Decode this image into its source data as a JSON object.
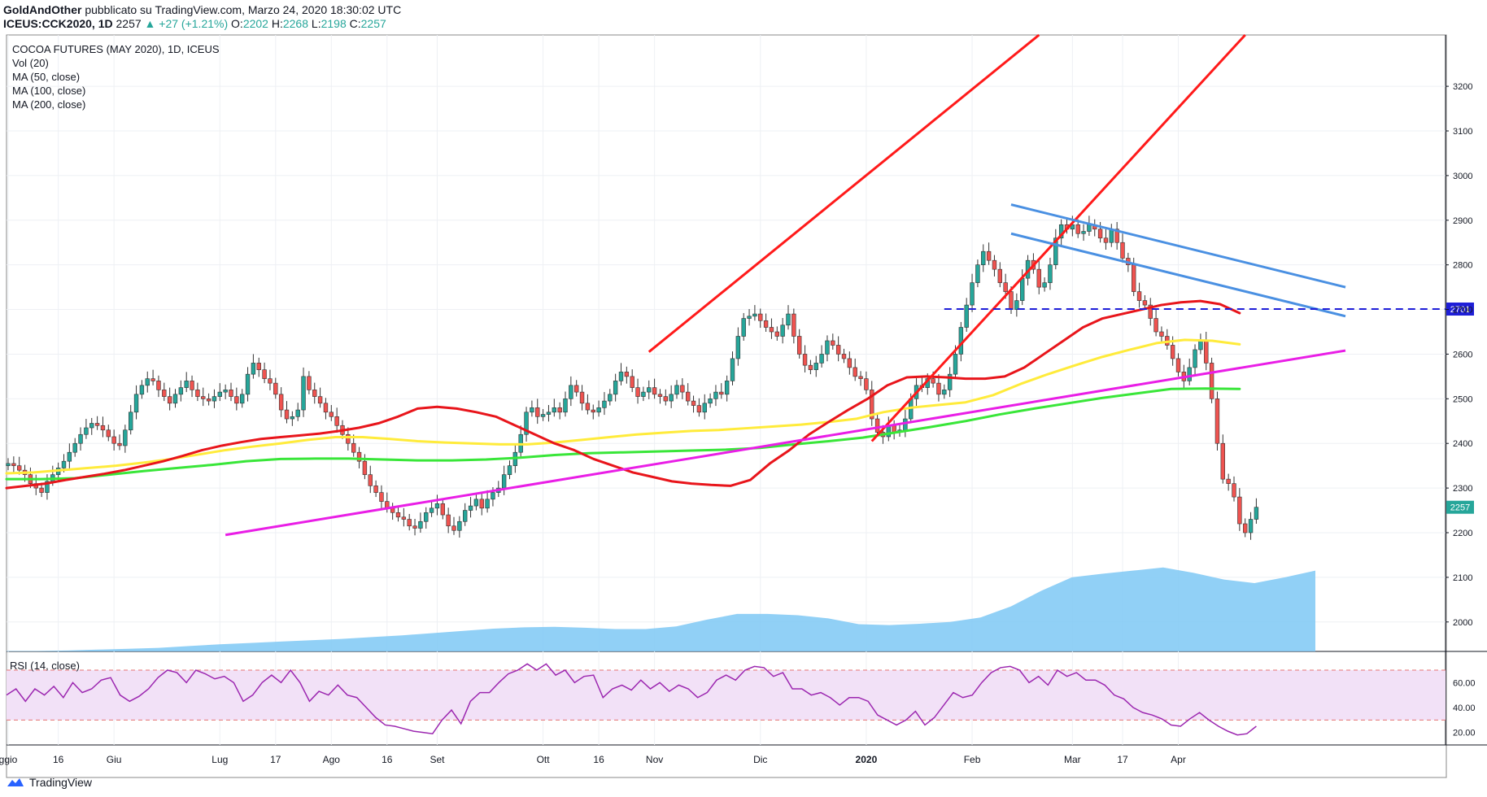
{
  "header": {
    "author": "GoldAndOther",
    "published_text": "pubblicato su TradingView.com, Marzo 24, 2020 18:30:02 UTC",
    "symbol": "ICEUS:CCK2020, 1D",
    "last": "2257",
    "change": "▲ +27 (+1.21%)",
    "o_label": "O:",
    "o": "2202",
    "h_label": "H:",
    "h": "2268",
    "l_label": "L:",
    "l": "2198",
    "c_label": "C:",
    "c": "2257"
  },
  "legend": {
    "title": "COCOA FUTURES (MAY 2020), 1D, ICEUS",
    "items": [
      "Vol (20)",
      "MA (50, close)",
      "MA (100, close)",
      "MA (200, close)"
    ]
  },
  "rsi_label": "RSI (14, close)",
  "footer": {
    "brand": "TradingView"
  },
  "colors": {
    "up": "#26a69a",
    "down": "#ef5350",
    "ma50": "#e8151b",
    "ma100": "#ffeb3b",
    "ma200": "#39e639",
    "trend_red": "#ff1a1a",
    "trend_blue": "#4a90e2",
    "trend_magenta": "#e91ee6",
    "volume": "#7ec8f5",
    "rsi": "#9c27b0",
    "rsi_band": "#f2e1f7",
    "price_label": "#1e1ed8"
  },
  "chart_data": {
    "type": "candlestick",
    "title": "COCOA FUTURES (MAY 2020), 1D, ICEUS",
    "y_ticks": [
      3200,
      3100,
      3000,
      2900,
      2800,
      2700,
      2600,
      2500,
      2400,
      2300,
      2200,
      2100,
      2000
    ],
    "ylim": [
      1934,
      3315
    ],
    "x_ticks": [
      "ggio",
      "16",
      "Giu",
      "Lug",
      "17",
      "Ago",
      "16",
      "Set",
      "Ott",
      "16",
      "Nov",
      "Dic",
      "2020",
      "Feb",
      "Mar",
      "17",
      "Apr"
    ],
    "x_tick_bold": [
      "2020"
    ],
    "price_label": "2257",
    "level_label": "2701",
    "level_value": 2701,
    "closes": [
      2355,
      2350,
      2340,
      2330,
      2310,
      2300,
      2290,
      2315,
      2330,
      2345,
      2360,
      2380,
      2400,
      2420,
      2435,
      2445,
      2440,
      2430,
      2415,
      2400,
      2395,
      2430,
      2470,
      2510,
      2530,
      2545,
      2540,
      2520,
      2505,
      2490,
      2510,
      2525,
      2540,
      2520,
      2505,
      2500,
      2495,
      2505,
      2515,
      2520,
      2505,
      2490,
      2510,
      2555,
      2580,
      2565,
      2545,
      2535,
      2510,
      2475,
      2455,
      2460,
      2475,
      2550,
      2520,
      2505,
      2490,
      2470,
      2460,
      2440,
      2420,
      2400,
      2380,
      2360,
      2330,
      2305,
      2290,
      2270,
      2255,
      2245,
      2235,
      2230,
      2215,
      2210,
      2225,
      2245,
      2255,
      2265,
      2240,
      2215,
      2205,
      2225,
      2250,
      2260,
      2275,
      2255,
      2275,
      2290,
      2300,
      2330,
      2350,
      2380,
      2420,
      2470,
      2480,
      2460,
      2465,
      2470,
      2480,
      2470,
      2500,
      2530,
      2515,
      2490,
      2475,
      2470,
      2480,
      2495,
      2510,
      2540,
      2560,
      2550,
      2525,
      2505,
      2515,
      2525,
      2510,
      2505,
      2495,
      2510,
      2530,
      2515,
      2495,
      2485,
      2470,
      2490,
      2500,
      2515,
      2510,
      2540,
      2590,
      2640,
      2680,
      2685,
      2690,
      2675,
      2660,
      2650,
      2640,
      2665,
      2690,
      2640,
      2600,
      2575,
      2565,
      2580,
      2600,
      2630,
      2620,
      2600,
      2590,
      2570,
      2550,
      2545,
      2520,
      2455,
      2425,
      2415,
      2440,
      2425,
      2430,
      2455,
      2500,
      2530,
      2525,
      2545,
      2535,
      2510,
      2520,
      2555,
      2600,
      2660,
      2710,
      2760,
      2800,
      2830,
      2810,
      2790,
      2760,
      2740,
      2700,
      2720,
      2770,
      2810,
      2790,
      2750,
      2760,
      2800,
      2860,
      2890,
      2880,
      2890,
      2870,
      2875,
      2890,
      2880,
      2860,
      2850,
      2880,
      2850,
      2815,
      2800,
      2740,
      2720,
      2710,
      2680,
      2650,
      2640,
      2620,
      2590,
      2560,
      2540,
      2570,
      2610,
      2630,
      2580,
      2500,
      2400,
      2320,
      2310,
      2280,
      2220,
      2200,
      2230,
      2257
    ],
    "ma50": [
      2300,
      2305,
      2310,
      2318,
      2325,
      2332,
      2340,
      2350,
      2360,
      2372,
      2385,
      2395,
      2403,
      2410,
      2414,
      2418,
      2422,
      2428,
      2435,
      2445,
      2460,
      2478,
      2482,
      2478,
      2470,
      2460,
      2440,
      2420,
      2400,
      2385,
      2365,
      2350,
      2335,
      2325,
      2315,
      2310,
      2307,
      2305,
      2318,
      2355,
      2385,
      2420,
      2448,
      2475,
      2500,
      2530,
      2548,
      2550,
      2548,
      2545,
      2545,
      2550,
      2570,
      2600,
      2630,
      2660,
      2680,
      2690,
      2700,
      2710,
      2716,
      2719,
      2712,
      2692
    ],
    "ma100": [
      2333,
      2335,
      2340,
      2345,
      2350,
      2357,
      2365,
      2375,
      2385,
      2393,
      2400,
      2408,
      2414,
      2414,
      2410,
      2405,
      2402,
      2400,
      2398,
      2398,
      2402,
      2408,
      2414,
      2420,
      2424,
      2428,
      2430,
      2434,
      2438,
      2442,
      2448,
      2455,
      2470,
      2480,
      2486,
      2492,
      2508,
      2533,
      2555,
      2575,
      2594,
      2610,
      2625,
      2632,
      2630,
      2622
    ],
    "ma200": [
      2320,
      2320,
      2322,
      2330,
      2338,
      2345,
      2352,
      2360,
      2365,
      2366,
      2366,
      2364,
      2362,
      2362,
      2364,
      2368,
      2374,
      2378,
      2380,
      2382,
      2384,
      2386,
      2390,
      2398,
      2405,
      2413,
      2425,
      2437,
      2450,
      2465,
      2478,
      2490,
      2502,
      2512,
      2522,
      2523,
      2522
    ],
    "volume": [
      1935,
      1935,
      1936,
      1938,
      1940,
      1942,
      1946,
      1950,
      1953,
      1956,
      1959,
      1962,
      1966,
      1970,
      1975,
      1980,
      1985,
      1988,
      1989,
      1987,
      1984,
      1984,
      1990,
      2005,
      2018,
      2018,
      2015,
      2008,
      1995,
      1993,
      1996,
      2000,
      2010,
      2035,
      2070,
      2100,
      2108,
      2115,
      2122,
      2110,
      2095,
      2087,
      2100,
      2115
    ],
    "rsi": [
      50,
      55,
      45,
      55,
      50,
      57,
      48,
      60,
      52,
      55,
      62,
      64,
      50,
      45,
      49,
      55,
      64,
      70,
      68,
      60,
      70,
      67,
      63,
      65,
      60,
      45,
      50,
      60,
      66,
      60,
      70,
      60,
      45,
      53,
      50,
      58,
      50,
      48,
      40,
      32,
      26,
      25,
      23,
      21,
      20,
      19,
      30,
      38,
      27,
      45,
      52,
      52,
      60,
      67,
      70,
      75,
      70,
      75,
      66,
      70,
      60,
      65,
      66,
      48,
      55,
      58,
      54,
      62,
      55,
      60,
      53,
      58,
      55,
      48,
      52,
      62,
      66,
      62,
      70,
      73,
      72,
      65,
      68,
      55,
      55,
      50,
      52,
      48,
      42,
      48,
      48,
      45,
      34,
      30,
      26,
      30,
      37,
      26,
      32,
      42,
      52,
      48,
      50,
      60,
      68,
      72,
      73,
      70,
      60,
      65,
      58,
      70,
      65,
      68,
      62,
      62,
      58,
      50,
      47,
      40,
      36,
      34,
      31,
      26,
      25,
      31,
      36,
      30,
      25,
      21,
      18,
      19,
      25
    ],
    "rsi_ticks": [
      "60.00",
      "40.00",
      "20.00"
    ],
    "rsi_ylim": [
      10,
      85
    ],
    "rsi_levels": [
      70,
      30
    ],
    "trendlines": [
      {
        "name": "channel-upper-red",
        "from": [
          115,
          2605
        ],
        "to": [
          185,
          3315
        ]
      },
      {
        "name": "channel-lower-red",
        "from": [
          155,
          2405
        ],
        "to": [
          222,
          3315
        ]
      },
      {
        "name": "blue-upper",
        "from": [
          180,
          2935
        ],
        "to": [
          240,
          2750
        ]
      },
      {
        "name": "blue-lower",
        "from": [
          180,
          2870
        ],
        "to": [
          240,
          2685
        ]
      },
      {
        "name": "support-magenta",
        "from": [
          39,
          2195
        ],
        "to": [
          240,
          2608
        ]
      }
    ]
  }
}
